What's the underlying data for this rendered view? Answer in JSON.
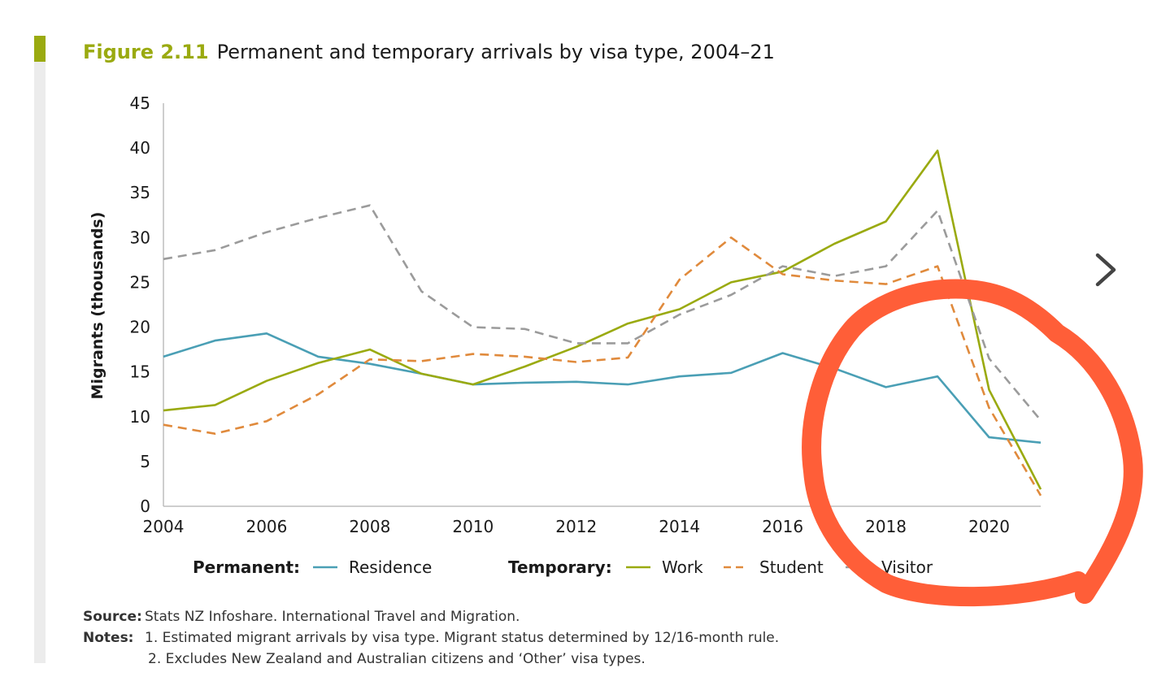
{
  "figure": {
    "label": "Figure 2.11",
    "title": "Permanent and temporary arrivals by visa type, 2004–21"
  },
  "chart_data": {
    "type": "line",
    "ylabel": "Migrants (thousands)",
    "ylim": [
      0,
      45
    ],
    "xlim": [
      2004,
      2021
    ],
    "yticks": [
      0,
      5,
      10,
      15,
      20,
      25,
      30,
      35,
      40,
      45
    ],
    "xticks": [
      2004,
      2006,
      2008,
      2010,
      2012,
      2014,
      2016,
      2018,
      2020
    ],
    "x": [
      2004,
      2005,
      2006,
      2007,
      2008,
      2009,
      2010,
      2011,
      2012,
      2013,
      2014,
      2015,
      2016,
      2017,
      2018,
      2019,
      2020,
      2021
    ],
    "legend": {
      "permanent_label": "Permanent:",
      "temporary_label": "Temporary:",
      "placement": "bottom"
    },
    "series": [
      {
        "name": "Residence",
        "group": "permanent",
        "color": "#4a9fb5",
        "dashed": false,
        "values": [
          16.7,
          18.5,
          19.3,
          16.7,
          15.9,
          14.8,
          13.6,
          13.8,
          13.9,
          13.6,
          14.5,
          14.9,
          17.1,
          15.4,
          13.3,
          14.5,
          7.7,
          7.1
        ]
      },
      {
        "name": "Work",
        "group": "temporary",
        "color": "#9aaa10",
        "dashed": false,
        "values": [
          10.7,
          11.3,
          14.0,
          16.0,
          17.5,
          14.8,
          13.6,
          15.6,
          17.8,
          20.4,
          22.0,
          25.0,
          26.2,
          29.3,
          31.8,
          39.7,
          13.0,
          1.9
        ]
      },
      {
        "name": "Student",
        "group": "temporary",
        "color": "#e08a3c",
        "dashed": true,
        "values": [
          9.1,
          8.1,
          9.5,
          12.5,
          16.4,
          16.2,
          17.0,
          16.7,
          16.1,
          16.6,
          25.3,
          30.0,
          25.9,
          25.2,
          24.8,
          26.8,
          11.0,
          1.2
        ]
      },
      {
        "name": "Visitor",
        "group": "temporary",
        "color": "#9b9b9b",
        "dashed": true,
        "values": [
          27.6,
          28.6,
          30.6,
          32.2,
          33.6,
          24.0,
          20.0,
          19.8,
          18.2,
          18.2,
          21.4,
          23.6,
          26.8,
          25.7,
          26.8,
          33.0,
          16.5,
          9.6
        ]
      }
    ]
  },
  "annotation": {
    "kind": "hand-drawn circle",
    "color": "#ff5e38"
  },
  "navigation": {
    "next_icon": "chevron-right-icon"
  },
  "footer": {
    "source_key": "Source:",
    "source_text": "Stats NZ Infoshare. International Travel and Migration.",
    "notes_key": "Notes:",
    "note1": "1. Estimated migrant arrivals by visa type. Migrant status determined by 12/16-month rule.",
    "note2": "2. Excludes New Zealand and Australian citizens and ‘Other’ visa types."
  }
}
